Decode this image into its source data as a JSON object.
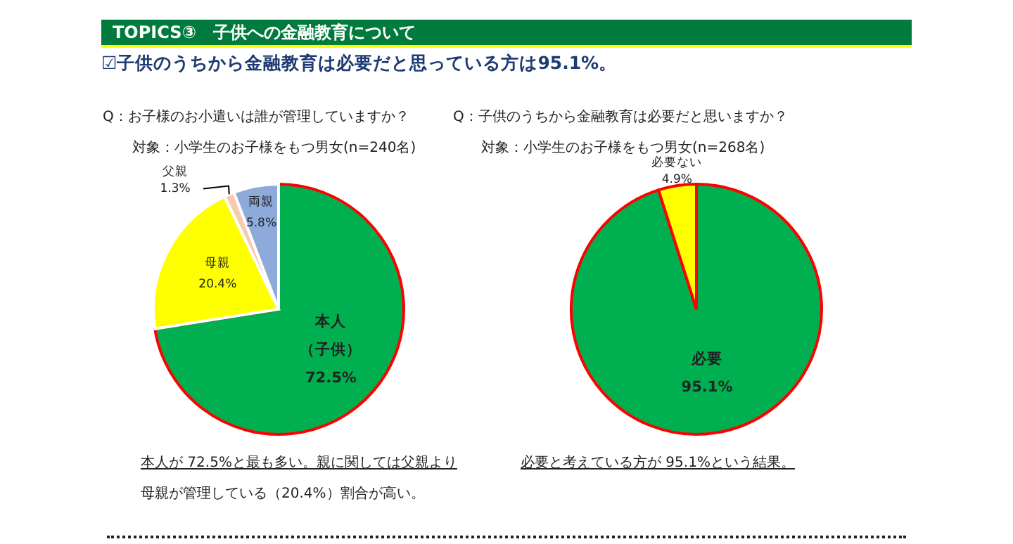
{
  "chart_data": [
    {
      "type": "pie",
      "title": "TOPICS③　子供への金融教育について",
      "subtitle": "☑子供のうちから金融教育は必要だと思っている方は95.1%。",
      "categories": [
        "本人（子供）",
        "母親",
        "父親",
        "両親"
      ],
      "values": [
        72.5,
        20.4,
        1.3,
        5.8
      ],
      "colors": [
        "#00b050",
        "#ffff00",
        "#f8cbad",
        "#8eaadb"
      ],
      "value_labels": [
        "72.5%",
        "20.4%",
        "1.3%",
        "5.8%"
      ],
      "annotations": [
        "Q：お子様のお小遣いは誰が管理していますか？",
        "対象：小学生のお子様をもつ男女(n=240名)",
        "本人が 72.5%と最も多い。親に関しては父親より",
        "母親が管理している（20.4%）割合が高い。"
      ]
    },
    {
      "type": "pie",
      "categories": [
        "必要",
        "必要ない"
      ],
      "values": [
        95.1,
        4.9
      ],
      "colors": [
        "#00b050",
        "#ffff00"
      ],
      "value_labels": [
        "95.1%",
        "4.9%"
      ],
      "annotations": [
        "Q：子供のうちから金融教育は必要だと思いますか？",
        "対象：小学生のお子様をもつ男女(n=268名)",
        "必要と考えている方が 95.1%という結果。"
      ]
    }
  ]
}
